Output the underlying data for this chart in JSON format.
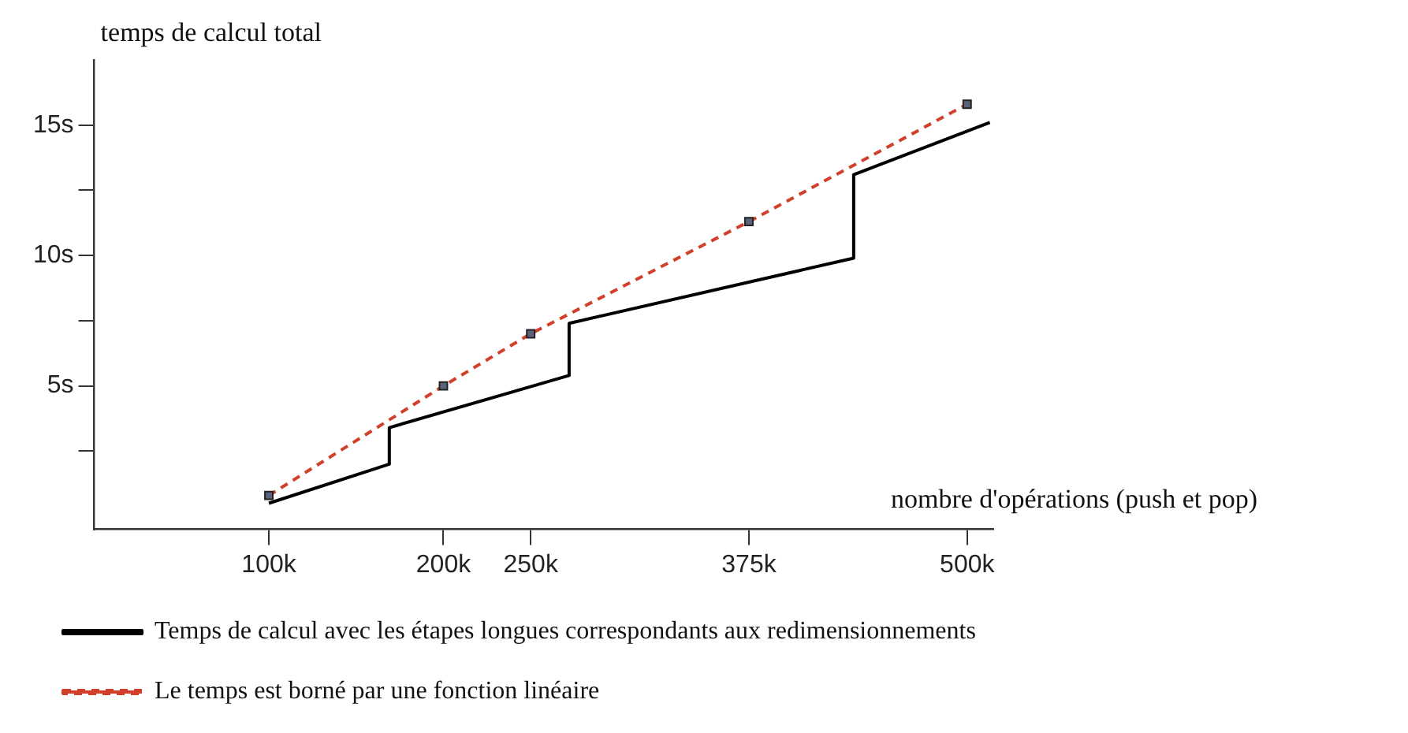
{
  "chart_data": {
    "type": "line",
    "xlabel": "nombre d'opérations (push et pop)",
    "ylabel": "temps de calcul total",
    "xlim": [
      0,
      515000
    ],
    "xticks": [
      {
        "value": 100000,
        "label": "100k"
      },
      {
        "value": 200000,
        "label": "200k"
      },
      {
        "value": 250000,
        "label": "250k"
      },
      {
        "value": 375000,
        "label": "375k"
      },
      {
        "value": 500000,
        "label": "500k"
      }
    ],
    "ylim": [
      -0.5,
      17.5
    ],
    "yticks": [
      {
        "value": 2.5,
        "label": null
      },
      {
        "value": 5,
        "label": "5s"
      },
      {
        "value": 7.5,
        "label": null
      },
      {
        "value": 10,
        "label": "10s"
      },
      {
        "value": 12.5,
        "label": null
      },
      {
        "value": 15,
        "label": "15s"
      }
    ],
    "legend": "bottom",
    "series": [
      {
        "name": "Temps de calcul avec les étapes longues correspondants aux redimensionnements",
        "type": "line",
        "color": "#000000",
        "line_style": "solid",
        "marker": "none",
        "x": [
          100000,
          169000,
          169000,
          272000,
          272000,
          435000,
          435000,
          513000
        ],
        "values": [
          0.5,
          2.0,
          3.4,
          5.4,
          7.4,
          9.9,
          13.1,
          15.1
        ]
      },
      {
        "name": "Le temps est borné par une fonction linéaire",
        "type": "line",
        "color": "#d0402a",
        "line_style": "dashed",
        "marker": "square",
        "x": [
          100000,
          200000,
          250000,
          375000,
          500000
        ],
        "values": [
          0.8,
          5.0,
          7.0,
          11.3,
          15.8
        ]
      }
    ]
  }
}
